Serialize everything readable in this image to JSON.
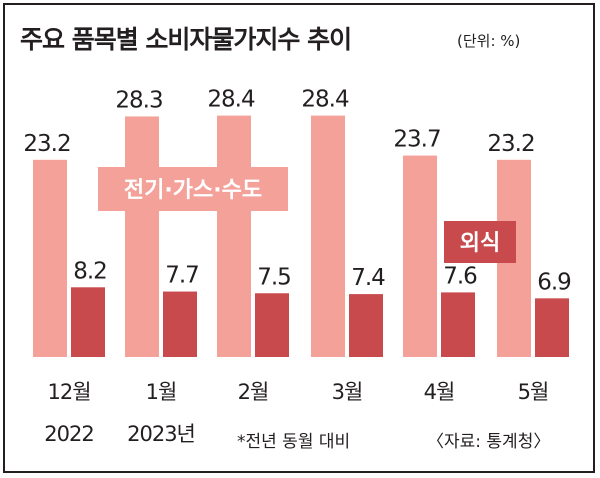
{
  "header": {
    "title": "주요 품목별 소비자물가지수 추이",
    "unit": "(단위: %)"
  },
  "footer": {
    "note": "*전년 동월 대비",
    "source": "〈자료: 통계청〉"
  },
  "colors": {
    "series_1": "#f4a19a",
    "series_2": "#c94a4c",
    "frame": "#231f20",
    "label_text": "#ffffff"
  },
  "chart_data": {
    "type": "bar",
    "categories": [
      [
        "12월",
        "2022"
      ],
      [
        "1월",
        "2023년"
      ],
      [
        "2월",
        ""
      ],
      [
        "3월",
        ""
      ],
      [
        "4월",
        ""
      ],
      [
        "5월",
        ""
      ]
    ],
    "series": [
      {
        "name": "전기·가스·수도",
        "values": [
          23.2,
          28.3,
          28.4,
          28.4,
          23.7,
          23.2
        ]
      },
      {
        "name": "외식",
        "values": [
          8.2,
          7.7,
          7.5,
          7.4,
          7.6,
          6.9
        ]
      }
    ],
    "value_labels": [
      [
        "23.2",
        "28.3",
        "28.4",
        "28.4",
        "23.7",
        "23.2"
      ],
      [
        "8.2",
        "7.7",
        "7.5",
        "7.4",
        "7.6",
        "6.9"
      ]
    ],
    "ylim": [
      0,
      30
    ],
    "grid": false,
    "axes_visible": false,
    "legend": "inline labels on bars"
  }
}
